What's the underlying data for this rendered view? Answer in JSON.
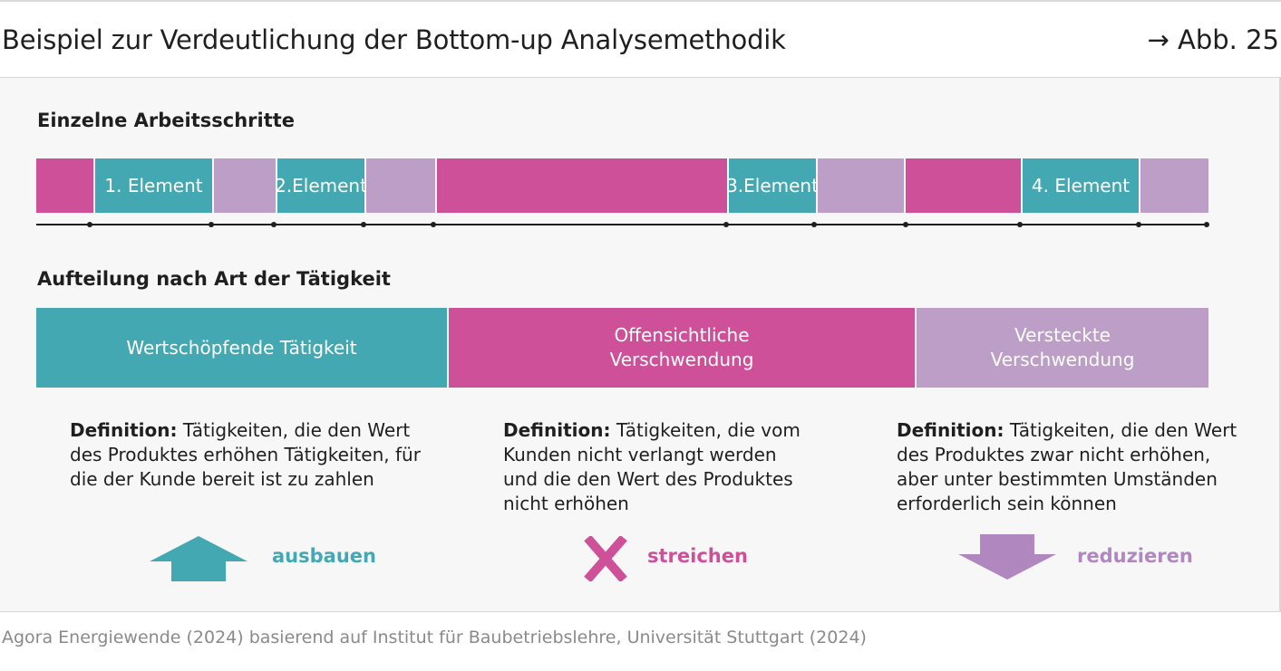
{
  "header": {
    "title": "Beispiel zur Verdeutlichung der Bottom-up Analysemethodik",
    "figure_ref": "→ Abb. 25"
  },
  "colors": {
    "teal": "#43a8b2",
    "magenta": "#cd5098",
    "lilac": "#bd9ec6",
    "lilac_icon": "#b087be"
  },
  "steps": {
    "title": "Einzelne Arbeitsschritte",
    "segments": [
      {
        "type": "magenta",
        "label": ""
      },
      {
        "type": "teal",
        "label": "1. Element"
      },
      {
        "type": "lilac",
        "label": ""
      },
      {
        "type": "teal",
        "label": "2.Element"
      },
      {
        "type": "lilac",
        "label": ""
      },
      {
        "type": "magenta",
        "label": ""
      },
      {
        "type": "teal",
        "label": "3.Element"
      },
      {
        "type": "lilac",
        "label": ""
      },
      {
        "type": "magenta",
        "label": ""
      },
      {
        "type": "teal",
        "label": "4. Element"
      },
      {
        "type": "lilac",
        "label": ""
      }
    ]
  },
  "categories": {
    "title": "Aufteilung nach Art der Tätigkeit",
    "items": [
      {
        "type": "teal",
        "label_line1": "Wertschöpfende Tätigkeit",
        "label_line2": "",
        "definition_label": "Definition:",
        "definition_text": " Tätigkeiten, die den Wert des Produktes erhöhen Tätigkeiten, für die der Kunde bereit ist zu zahlen",
        "action_label": "ausbauen",
        "action_icon": "arrow-up-icon"
      },
      {
        "type": "magenta",
        "label_line1": "Offensichtliche",
        "label_line2": "Verschwendung",
        "definition_label": "Definition:",
        "definition_text": " Tätigkeiten, die vom Kunden nicht verlangt werden und die den Wert des Produktes nicht erhöhen",
        "action_label": "streichen",
        "action_icon": "cross-icon"
      },
      {
        "type": "lilac",
        "label_line1": "Versteckte",
        "label_line2": "Verschwendung",
        "definition_label": "Definition:",
        "definition_text": " Tätigkeiten, die den Wert des Produktes zwar nicht erhöhen, aber unter bestimmten Umständen erforderlich sein können",
        "action_label": "reduzieren",
        "action_icon": "arrow-down-icon"
      }
    ]
  },
  "footer": {
    "source": "Agora Energiewende (2024) basierend auf Institut für Baubetriebslehre, Universität Stuttgart (2024)"
  }
}
